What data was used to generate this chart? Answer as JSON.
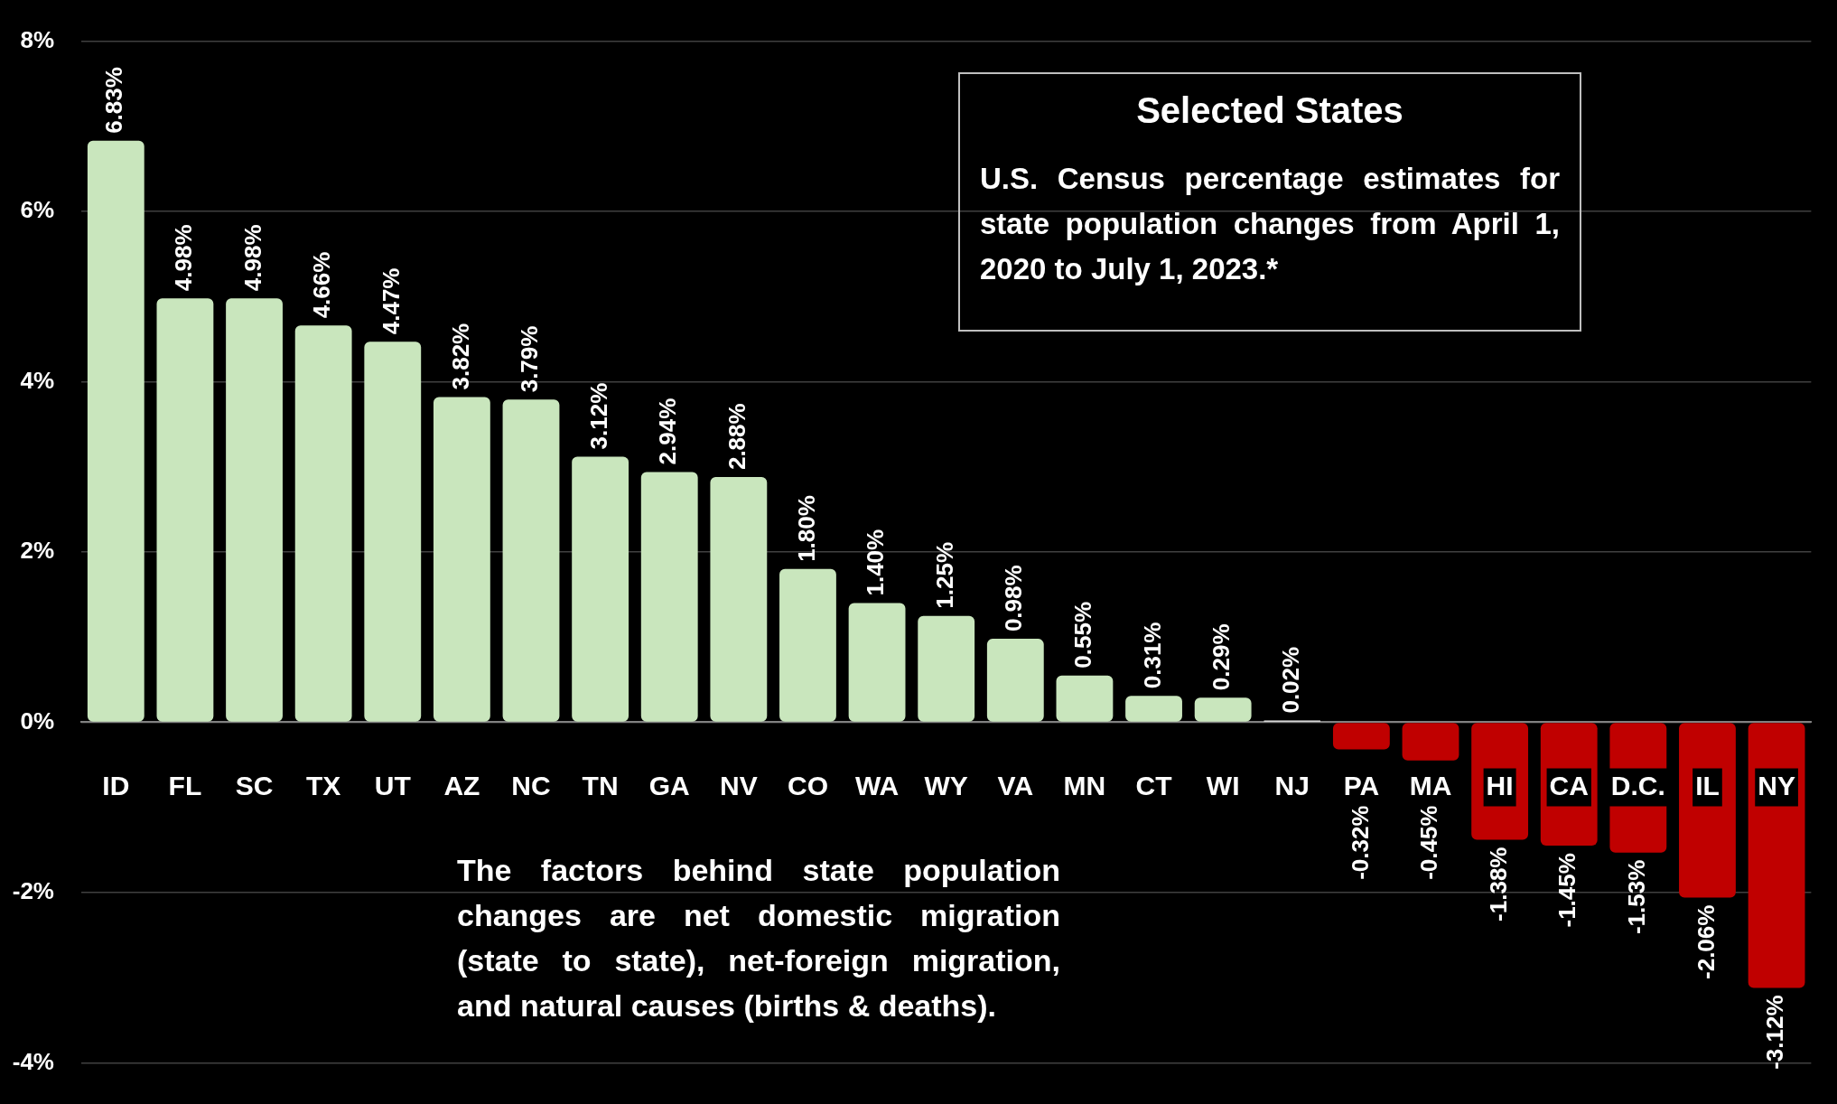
{
  "chart_data": {
    "type": "bar",
    "title": "Selected States",
    "subtitle": "U.S. Census percentage estimates for state population changes from April 1, 2020 to July 1, 2023.*",
    "annotations": [
      "The factors behind state population changes are net domestic migration (state to state), net-foreign migration, and natural causes (births & deaths)."
    ],
    "categories": [
      "ID",
      "FL",
      "SC",
      "TX",
      "UT",
      "AZ",
      "NC",
      "TN",
      "GA",
      "NV",
      "CO",
      "WA",
      "WY",
      "VA",
      "MN",
      "CT",
      "WI",
      "NJ",
      "PA",
      "MA",
      "HI",
      "CA",
      "D.C.",
      "IL",
      "NY"
    ],
    "values": [
      6.83,
      4.98,
      4.98,
      4.66,
      4.47,
      3.82,
      3.79,
      3.12,
      2.94,
      2.88,
      1.8,
      1.4,
      1.25,
      0.98,
      0.55,
      0.31,
      0.29,
      0.02,
      -0.32,
      -0.45,
      -1.38,
      -1.45,
      -1.53,
      -2.06,
      -3.12
    ],
    "value_labels": [
      "6.83%",
      "4.98%",
      "4.98%",
      "4.66%",
      "4.47%",
      "3.82%",
      "3.79%",
      "3.12%",
      "2.94%",
      "2.88%",
      "1.80%",
      "1.40%",
      "1.25%",
      "0.98%",
      "0.55%",
      "0.31%",
      "0.29%",
      "0.02%",
      "-0.32%",
      "-0.45%",
      "-1.38%",
      "-1.45%",
      "-1.53%",
      "-2.06%",
      "-3.12%"
    ],
    "colors": [
      "#c9e6bd",
      "#c9e6bd",
      "#c9e6bd",
      "#c9e6bd",
      "#c9e6bd",
      "#c9e6bd",
      "#c9e6bd",
      "#c9e6bd",
      "#c9e6bd",
      "#c9e6bd",
      "#c9e6bd",
      "#c9e6bd",
      "#c9e6bd",
      "#c9e6bd",
      "#c9e6bd",
      "#c9e6bd",
      "#c9e6bd",
      "#f2f2f2",
      "#c00000",
      "#c00000",
      "#c00000",
      "#c00000",
      "#c00000",
      "#c00000",
      "#c00000"
    ],
    "ylim": [
      -4,
      8
    ],
    "yticks": [
      {
        "value": -4,
        "label": "-4%"
      },
      {
        "value": -2,
        "label": "-2%"
      },
      {
        "value": 0,
        "label": "0%"
      },
      {
        "value": 2,
        "label": "2%"
      },
      {
        "value": 4,
        "label": "4%"
      },
      {
        "value": 6,
        "label": "6%"
      },
      {
        "value": 8,
        "label": "8%"
      }
    ],
    "grid": "y",
    "legend": false
  }
}
